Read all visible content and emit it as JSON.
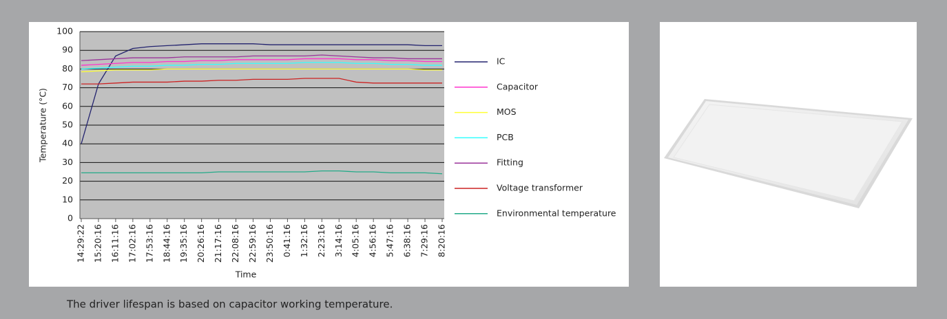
{
  "chart_data": {
    "type": "line",
    "x_label": "Time",
    "y_label": "Temperature (°C)",
    "categories": [
      "14:29:22",
      "15:20:16",
      "16:11:16",
      "17:02:16",
      "17:53:16",
      "18:44:16",
      "19:35:16",
      "20:26:16",
      "21:17:16",
      "22:08:16",
      "22:59:16",
      "23:50:16",
      "0:41:16",
      "1:32:16",
      "2:23:16",
      "3:14:16",
      "4:05:16",
      "4:56:16",
      "5:47:16",
      "6:38:16",
      "7:29:16",
      "8:20:16"
    ],
    "series": [
      {
        "name": "IC",
        "color": "#22226e",
        "values": [
          40,
          72,
          87,
          91,
          92,
          92.5,
          93,
          93.5,
          93.5,
          93.5,
          93.5,
          93,
          93,
          93,
          93,
          93,
          93,
          93,
          93,
          93,
          92.5,
          92.5
        ]
      },
      {
        "name": "Capacitor",
        "color": "#ff33cc",
        "values": [
          82,
          82.5,
          83,
          83.5,
          83.5,
          84,
          84,
          84.5,
          84.5,
          85,
          85,
          85,
          85,
          85.5,
          85.5,
          85.5,
          85,
          85,
          84.5,
          84.5,
          84,
          84
        ]
      },
      {
        "name": "MOS",
        "color": "#ffff33",
        "values": [
          78.5,
          79,
          79.5,
          79.5,
          79.5,
          80,
          80,
          80,
          80,
          80,
          80,
          80,
          80,
          80,
          80,
          80,
          80,
          80,
          80,
          80,
          79.5,
          79.5
        ]
      },
      {
        "name": "PCB",
        "color": "#33ffff",
        "values": [
          80,
          80.5,
          81,
          81.5,
          81.5,
          82,
          82,
          82.5,
          82.5,
          83,
          83,
          83,
          83,
          83.5,
          83.5,
          83.5,
          83,
          83,
          82.5,
          82.5,
          82,
          82
        ]
      },
      {
        "name": "Fitting",
        "color": "#993399",
        "values": [
          84.5,
          85,
          85.5,
          86,
          86,
          86,
          86.5,
          86.5,
          86.5,
          86.5,
          87,
          87,
          87,
          87,
          87.5,
          87,
          86.5,
          86,
          86,
          85.5,
          85.5,
          85.5
        ]
      },
      {
        "name": "Voltage transformer",
        "color": "#cc2222",
        "values": [
          72,
          72,
          72.5,
          73,
          73,
          73,
          73.5,
          73.5,
          74,
          74,
          74.5,
          74.5,
          74.5,
          75,
          75,
          75,
          73,
          72.5,
          72.5,
          72.5,
          72.5,
          72.5
        ]
      },
      {
        "name": "Environmental temperature",
        "color": "#22aa88",
        "values": [
          24.5,
          24.5,
          24.5,
          24.5,
          24.5,
          24.5,
          24.5,
          24.5,
          25,
          25,
          25,
          25,
          25,
          25,
          25.5,
          25.5,
          25,
          25,
          24.5,
          24.5,
          24.5,
          24
        ]
      }
    ],
    "ylim": [
      0,
      100
    ],
    "yticks": [
      0,
      10,
      20,
      30,
      40,
      50,
      60,
      70,
      80,
      90,
      100
    ],
    "grid": true,
    "legend": "right"
  },
  "caption": "The driver lifespan is based on capacitor working temperature."
}
